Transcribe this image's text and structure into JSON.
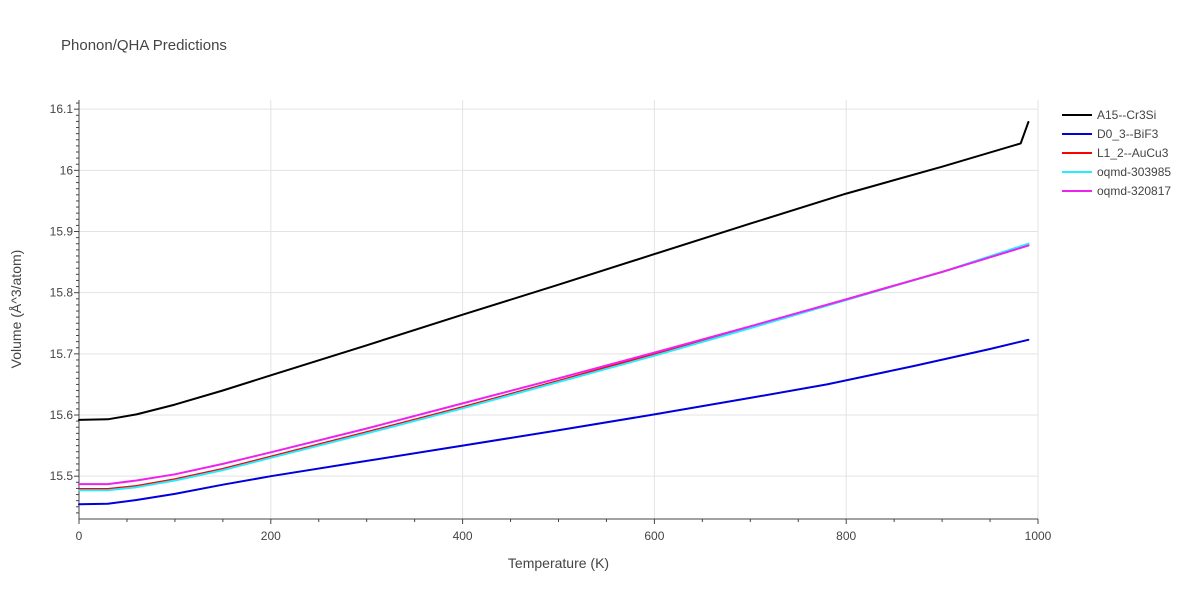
{
  "chart_data": {
    "type": "line",
    "title": "Phonon/QHA Predictions",
    "xlabel": "Temperature (K)",
    "ylabel": "Volume (Å^3/atom)",
    "xlim": [
      0,
      1000
    ],
    "ylim": [
      15.43,
      16.115
    ],
    "xticks": [
      0,
      200,
      400,
      600,
      800,
      1000
    ],
    "xtick_labels": [
      "0",
      "200",
      "400",
      "600",
      "800",
      "1000"
    ],
    "yticks": [
      15.5,
      15.6,
      15.7,
      15.8,
      15.9,
      16.0,
      16.1
    ],
    "ytick_labels": [
      "15.5",
      "15.6",
      "15.7",
      "15.8",
      "15.9",
      "16",
      "16.1"
    ],
    "grid": true,
    "legend_position": "right",
    "series": [
      {
        "name": "A15--Cr3Si",
        "color": "#000000",
        "points": [
          [
            0,
            15.592
          ],
          [
            30,
            15.593
          ],
          [
            60,
            15.601
          ],
          [
            100,
            15.617
          ],
          [
            150,
            15.64
          ],
          [
            200,
            15.665
          ],
          [
            300,
            15.714
          ],
          [
            400,
            15.764
          ],
          [
            500,
            15.813
          ],
          [
            600,
            15.863
          ],
          [
            700,
            15.913
          ],
          [
            800,
            15.962
          ],
          [
            900,
            16.006
          ],
          [
            982,
            16.044
          ],
          [
            990,
            16.079
          ]
        ]
      },
      {
        "name": "D0_3--BiF3",
        "color": "#0000dd",
        "points": [
          [
            0,
            15.454
          ],
          [
            30,
            15.455
          ],
          [
            60,
            15.461
          ],
          [
            100,
            15.471
          ],
          [
            150,
            15.486
          ],
          [
            200,
            15.5
          ],
          [
            300,
            15.525
          ],
          [
            400,
            15.55
          ],
          [
            500,
            15.575
          ],
          [
            600,
            15.601
          ],
          [
            700,
            15.628
          ],
          [
            780,
            15.65
          ],
          [
            870,
            15.68
          ],
          [
            950,
            15.708
          ],
          [
            990,
            15.723
          ]
        ]
      },
      {
        "name": "L1_2--AuCu3",
        "color": "#ff0000",
        "points": [
          [
            0,
            15.479
          ],
          [
            30,
            15.479
          ],
          [
            60,
            15.484
          ],
          [
            100,
            15.495
          ],
          [
            150,
            15.512
          ],
          [
            200,
            15.532
          ],
          [
            300,
            15.572
          ],
          [
            400,
            15.613
          ],
          [
            500,
            15.656
          ],
          [
            600,
            15.7
          ],
          [
            700,
            15.744
          ],
          [
            800,
            15.789
          ],
          [
            900,
            15.834
          ],
          [
            990,
            15.878
          ]
        ]
      },
      {
        "name": "oqmd-303985",
        "color": "#22eeff",
        "points": [
          [
            0,
            15.477
          ],
          [
            30,
            15.477
          ],
          [
            60,
            15.482
          ],
          [
            100,
            15.493
          ],
          [
            150,
            15.51
          ],
          [
            200,
            15.53
          ],
          [
            300,
            15.57
          ],
          [
            400,
            15.611
          ],
          [
            500,
            15.654
          ],
          [
            600,
            15.697
          ],
          [
            700,
            15.742
          ],
          [
            800,
            15.788
          ],
          [
            900,
            15.834
          ],
          [
            990,
            15.88
          ]
        ]
      },
      {
        "name": "oqmd-320817",
        "color": "#ee22ee",
        "points": [
          [
            0,
            15.487
          ],
          [
            30,
            15.487
          ],
          [
            60,
            15.493
          ],
          [
            100,
            15.503
          ],
          [
            150,
            15.52
          ],
          [
            200,
            15.539
          ],
          [
            300,
            15.578
          ],
          [
            400,
            15.619
          ],
          [
            500,
            15.66
          ],
          [
            600,
            15.702
          ],
          [
            700,
            15.745
          ],
          [
            800,
            15.789
          ],
          [
            900,
            15.834
          ],
          [
            990,
            15.877
          ]
        ]
      }
    ]
  }
}
